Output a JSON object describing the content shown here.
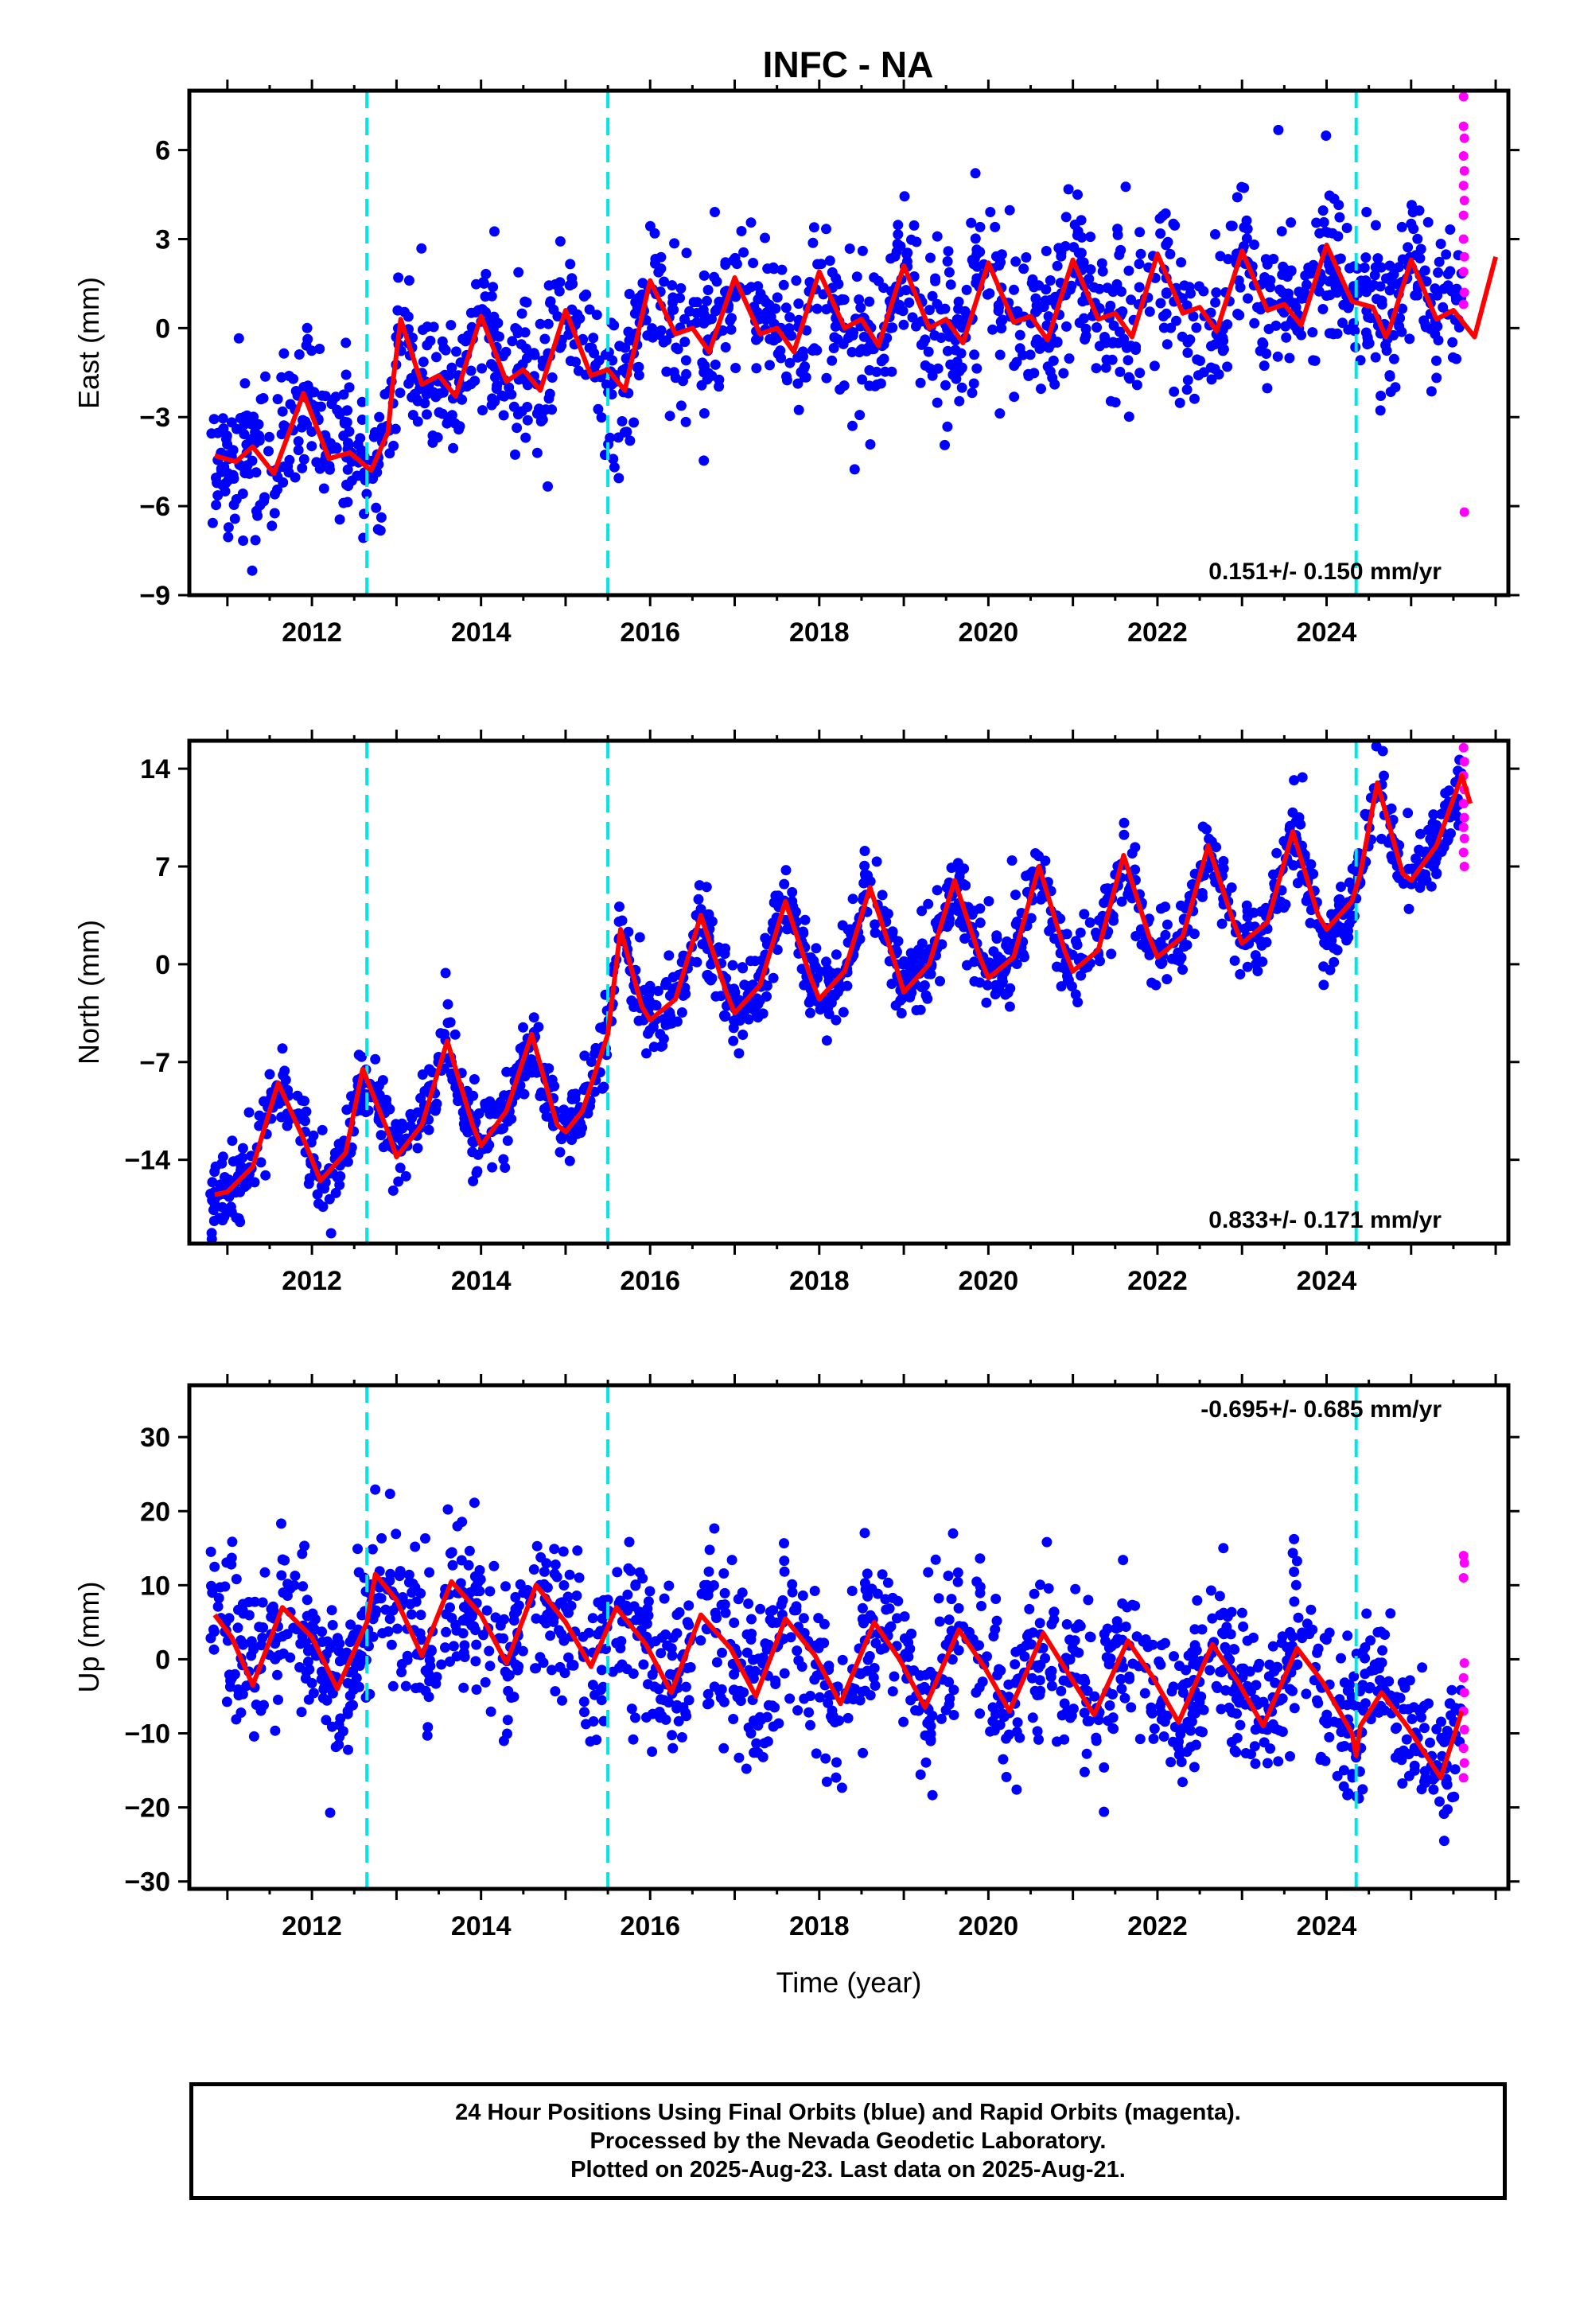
{
  "title": "INFC - NA",
  "footer": {
    "line1": "24 Hour Positions Using Final Orbits (blue) and Rapid Orbits (magenta).",
    "line2": "Processed by the Nevada Geodetic Laboratory.",
    "line3": "Plotted on 2025-Aug-23. Last data on 2025-Aug-21."
  },
  "colors": {
    "final_orbits": "#0000ff",
    "rapid_orbits": "#ff00ff",
    "model": "#ff0000",
    "breaks": "#00e5e5",
    "frame": "#000000"
  },
  "chart_data": [
    {
      "type": "scatter",
      "component": "East",
      "ylabel": "East (mm)",
      "xlabel": "",
      "xlim": [
        2010.55,
        2026.15
      ],
      "ylim": [
        -9,
        8
      ],
      "xticks": [
        2012,
        2014,
        2016,
        2018,
        2020,
        2022,
        2024
      ],
      "yticks": [
        -9,
        -6,
        -3,
        0,
        3,
        6
      ],
      "rate": "0.151+/- 0.150 mm/yr",
      "rate_position": "bottom-right",
      "breaks": [
        2012.65,
        2015.5,
        2024.35
      ],
      "model": {
        "points": [
          [
            2010.85,
            -4.3
          ],
          [
            2011.1,
            -4.5
          ],
          [
            2011.3,
            -4.0
          ],
          [
            2011.55,
            -4.9
          ],
          [
            2011.9,
            -2.2
          ],
          [
            2012.2,
            -4.4
          ],
          [
            2012.45,
            -4.2
          ],
          [
            2012.7,
            -4.8
          ],
          [
            2012.9,
            -3.5
          ],
          [
            2012.95,
            -2.0
          ],
          [
            2013.05,
            0.3
          ],
          [
            2013.3,
            -1.9
          ],
          [
            2013.5,
            -1.6
          ],
          [
            2013.7,
            -2.3
          ],
          [
            2014.0,
            0.4
          ],
          [
            2014.3,
            -1.8
          ],
          [
            2014.5,
            -1.4
          ],
          [
            2014.7,
            -2.1
          ],
          [
            2015.0,
            0.6
          ],
          [
            2015.3,
            -1.6
          ],
          [
            2015.5,
            -1.4
          ],
          [
            2015.7,
            -2.1
          ],
          [
            2016.0,
            1.6
          ],
          [
            2016.3,
            -0.2
          ],
          [
            2016.5,
            0.0
          ],
          [
            2016.7,
            -0.8
          ],
          [
            2017.0,
            1.7
          ],
          [
            2017.3,
            -0.2
          ],
          [
            2017.5,
            0.0
          ],
          [
            2017.7,
            -0.8
          ],
          [
            2018.0,
            1.9
          ],
          [
            2018.3,
            0.0
          ],
          [
            2018.5,
            0.3
          ],
          [
            2018.7,
            -0.6
          ],
          [
            2019.0,
            2.1
          ],
          [
            2019.3,
            0.0
          ],
          [
            2019.5,
            0.3
          ],
          [
            2019.7,
            -0.5
          ],
          [
            2020.0,
            2.2
          ],
          [
            2020.3,
            0.2
          ],
          [
            2020.5,
            0.4
          ],
          [
            2020.7,
            -0.4
          ],
          [
            2021.0,
            2.3
          ],
          [
            2021.3,
            0.3
          ],
          [
            2021.5,
            0.5
          ],
          [
            2021.7,
            -0.3
          ],
          [
            2022.0,
            2.5
          ],
          [
            2022.3,
            0.5
          ],
          [
            2022.5,
            0.7
          ],
          [
            2022.7,
            -0.1
          ],
          [
            2023.0,
            2.6
          ],
          [
            2023.3,
            0.6
          ],
          [
            2023.5,
            0.8
          ],
          [
            2023.7,
            0.1
          ],
          [
            2024.0,
            2.8
          ],
          [
            2024.3,
            0.9
          ],
          [
            2024.55,
            0.7
          ],
          [
            2024.7,
            -0.3
          ],
          [
            2024.75,
            0.0
          ],
          [
            2025.0,
            2.3
          ],
          [
            2025.3,
            0.3
          ],
          [
            2025.5,
            0.6
          ],
          [
            2025.75,
            -0.3
          ],
          [
            2026.0,
            2.4
          ]
        ]
      },
      "series": [
        {
          "name": "Final Orbits",
          "color": "#0000ff",
          "x_range": [
            2010.8,
            2025.6
          ],
          "spread": 1.25,
          "density": 1500
        },
        {
          "name": "Rapid Orbits",
          "color": "#ff00ff",
          "x_range": [
            2025.6,
            2025.64
          ],
          "points": [
            [
              2025.62,
              7.8
            ],
            [
              2025.62,
              6.8
            ],
            [
              2025.63,
              6.4
            ],
            [
              2025.62,
              5.8
            ],
            [
              2025.63,
              5.3
            ],
            [
              2025.62,
              4.8
            ],
            [
              2025.63,
              4.3
            ],
            [
              2025.62,
              3.8
            ],
            [
              2025.62,
              3.0
            ],
            [
              2025.63,
              2.4
            ],
            [
              2025.62,
              1.9
            ],
            [
              2025.63,
              1.2
            ],
            [
              2025.62,
              0.8
            ],
            [
              2025.63,
              -6.2
            ]
          ]
        }
      ]
    },
    {
      "type": "scatter",
      "component": "North",
      "ylabel": "North (mm)",
      "xlabel": "",
      "xlim": [
        2010.55,
        2026.15
      ],
      "ylim": [
        -20,
        16
      ],
      "xticks": [
        2012,
        2014,
        2016,
        2018,
        2020,
        2022,
        2024
      ],
      "yticks": [
        -14,
        -7,
        0,
        7,
        14
      ],
      "rate": "0.833+/- 0.171 mm/yr",
      "rate_position": "bottom-right",
      "breaks": [
        2012.65,
        2015.5,
        2024.35
      ],
      "model": {
        "points": [
          [
            2010.85,
            -16.5
          ],
          [
            2011.0,
            -16.3
          ],
          [
            2011.3,
            -14.5
          ],
          [
            2011.6,
            -8.5
          ],
          [
            2011.9,
            -12.5
          ],
          [
            2012.1,
            -15.5
          ],
          [
            2012.4,
            -13.5
          ],
          [
            2012.6,
            -7.5
          ],
          [
            2012.9,
            -12.0
          ],
          [
            2013.0,
            -13.8
          ],
          [
            2013.3,
            -11.5
          ],
          [
            2013.6,
            -5.5
          ],
          [
            2013.9,
            -11.5
          ],
          [
            2014.0,
            -13.0
          ],
          [
            2014.3,
            -10.5
          ],
          [
            2014.6,
            -5.0
          ],
          [
            2014.9,
            -11.5
          ],
          [
            2015.0,
            -12.0
          ],
          [
            2015.2,
            -10.5
          ],
          [
            2015.5,
            -5.0
          ],
          [
            2015.65,
            2.5
          ],
          [
            2015.9,
            -3.0
          ],
          [
            2016.0,
            -4.0
          ],
          [
            2016.3,
            -2.5
          ],
          [
            2016.6,
            3.5
          ],
          [
            2016.9,
            -2.0
          ],
          [
            2017.0,
            -3.5
          ],
          [
            2017.3,
            -1.5
          ],
          [
            2017.6,
            4.5
          ],
          [
            2017.9,
            -1.0
          ],
          [
            2018.0,
            -2.5
          ],
          [
            2018.3,
            -0.5
          ],
          [
            2018.6,
            5.5
          ],
          [
            2018.9,
            0.0
          ],
          [
            2019.0,
            -2.0
          ],
          [
            2019.3,
            0.0
          ],
          [
            2019.6,
            6.0
          ],
          [
            2019.9,
            0.5
          ],
          [
            2020.0,
            -1.0
          ],
          [
            2020.3,
            0.5
          ],
          [
            2020.6,
            7.0
          ],
          [
            2020.9,
            1.0
          ],
          [
            2021.0,
            -0.5
          ],
          [
            2021.3,
            1.0
          ],
          [
            2021.6,
            7.8
          ],
          [
            2021.9,
            2.0
          ],
          [
            2022.0,
            0.5
          ],
          [
            2022.3,
            2.0
          ],
          [
            2022.6,
            8.5
          ],
          [
            2022.9,
            3.0
          ],
          [
            2023.0,
            1.5
          ],
          [
            2023.3,
            3.0
          ],
          [
            2023.6,
            9.5
          ],
          [
            2023.9,
            3.5
          ],
          [
            2024.0,
            2.5
          ],
          [
            2024.3,
            4.5
          ],
          [
            2024.4,
            6.5
          ],
          [
            2024.6,
            13.0
          ],
          [
            2024.9,
            6.5
          ],
          [
            2025.0,
            6.0
          ],
          [
            2025.3,
            8.5
          ],
          [
            2025.6,
            13.5
          ],
          [
            2025.7,
            11.5
          ]
        ]
      },
      "series": [
        {
          "name": "Final Orbits",
          "color": "#0000ff",
          "x_range": [
            2010.8,
            2025.6
          ],
          "spread": 1.4,
          "density": 1500
        },
        {
          "name": "Rapid Orbits",
          "color": "#ff00ff",
          "x_range": [
            2025.6,
            2025.64
          ],
          "points": [
            [
              2025.62,
              15.5
            ],
            [
              2025.63,
              14.5
            ],
            [
              2025.62,
              13.5
            ],
            [
              2025.63,
              12.5
            ],
            [
              2025.62,
              11.5
            ],
            [
              2025.63,
              10.5
            ],
            [
              2025.62,
              9.8
            ],
            [
              2025.63,
              9.0
            ],
            [
              2025.62,
              8.0
            ],
            [
              2025.63,
              7.0
            ]
          ]
        }
      ]
    },
    {
      "type": "scatter",
      "component": "Up",
      "ylabel": "Up (mm)",
      "xlabel": "Time (year)",
      "xlim": [
        2010.55,
        2026.15
      ],
      "ylim": [
        -31,
        37
      ],
      "xticks": [
        2012,
        2014,
        2016,
        2018,
        2020,
        2022,
        2024
      ],
      "yticks": [
        -30,
        -20,
        -10,
        0,
        10,
        20,
        30
      ],
      "rate": "-0.695+/- 0.685 mm/yr",
      "rate_position": "top-right",
      "breaks": [
        2012.65,
        2015.5,
        2024.35
      ],
      "model": {
        "points": [
          [
            2010.85,
            6.0
          ],
          [
            2011.05,
            3.0
          ],
          [
            2011.3,
            -3.5
          ],
          [
            2011.65,
            7.0
          ],
          [
            2012.0,
            3.0
          ],
          [
            2012.3,
            -4.0
          ],
          [
            2012.65,
            5.0
          ],
          [
            2012.75,
            11.5
          ],
          [
            2013.0,
            8.0
          ],
          [
            2013.3,
            0.5
          ],
          [
            2013.65,
            10.5
          ],
          [
            2014.0,
            6.0
          ],
          [
            2014.3,
            -0.5
          ],
          [
            2014.65,
            10.0
          ],
          [
            2015.0,
            5.0
          ],
          [
            2015.3,
            -1.0
          ],
          [
            2015.6,
            7.0
          ],
          [
            2015.95,
            2.0
          ],
          [
            2016.25,
            -4.5
          ],
          [
            2016.6,
            6.0
          ],
          [
            2016.95,
            1.5
          ],
          [
            2017.25,
            -5.0
          ],
          [
            2017.6,
            5.5
          ],
          [
            2017.95,
            0.5
          ],
          [
            2018.25,
            -6.0
          ],
          [
            2018.65,
            5.0
          ],
          [
            2018.95,
            0.0
          ],
          [
            2019.25,
            -6.5
          ],
          [
            2019.65,
            4.0
          ],
          [
            2019.95,
            -1.0
          ],
          [
            2020.25,
            -7.0
          ],
          [
            2020.65,
            3.5
          ],
          [
            2020.95,
            -2.0
          ],
          [
            2021.25,
            -7.5
          ],
          [
            2021.65,
            2.5
          ],
          [
            2021.95,
            -2.5
          ],
          [
            2022.25,
            -8.5
          ],
          [
            2022.65,
            2.0
          ],
          [
            2022.95,
            -3.0
          ],
          [
            2023.25,
            -9.0
          ],
          [
            2023.65,
            1.5
          ],
          [
            2023.95,
            -3.0
          ],
          [
            2024.3,
            -10.0
          ],
          [
            2024.35,
            -13.0
          ],
          [
            2024.4,
            -9.0
          ],
          [
            2024.65,
            -4.5
          ],
          [
            2024.95,
            -9.0
          ],
          [
            2025.35,
            -16.0
          ],
          [
            2025.6,
            -7.0
          ]
        ]
      },
      "series": [
        {
          "name": "Final Orbits",
          "color": "#0000ff",
          "x_range": [
            2010.8,
            2025.6
          ],
          "spread": 5.5,
          "density": 1500
        },
        {
          "name": "Rapid Orbits",
          "color": "#ff00ff",
          "x_range": [
            2025.6,
            2025.64
          ],
          "points": [
            [
              2025.62,
              14.0
            ],
            [
              2025.63,
              13.0
            ],
            [
              2025.62,
              11.0
            ],
            [
              2025.63,
              -0.5
            ],
            [
              2025.62,
              -2.5
            ],
            [
              2025.63,
              -4.5
            ],
            [
              2025.62,
              -7.0
            ],
            [
              2025.63,
              -9.5
            ],
            [
              2025.62,
              -12.0
            ],
            [
              2025.63,
              -14.0
            ],
            [
              2025.62,
              -16.0
            ]
          ]
        }
      ]
    }
  ]
}
